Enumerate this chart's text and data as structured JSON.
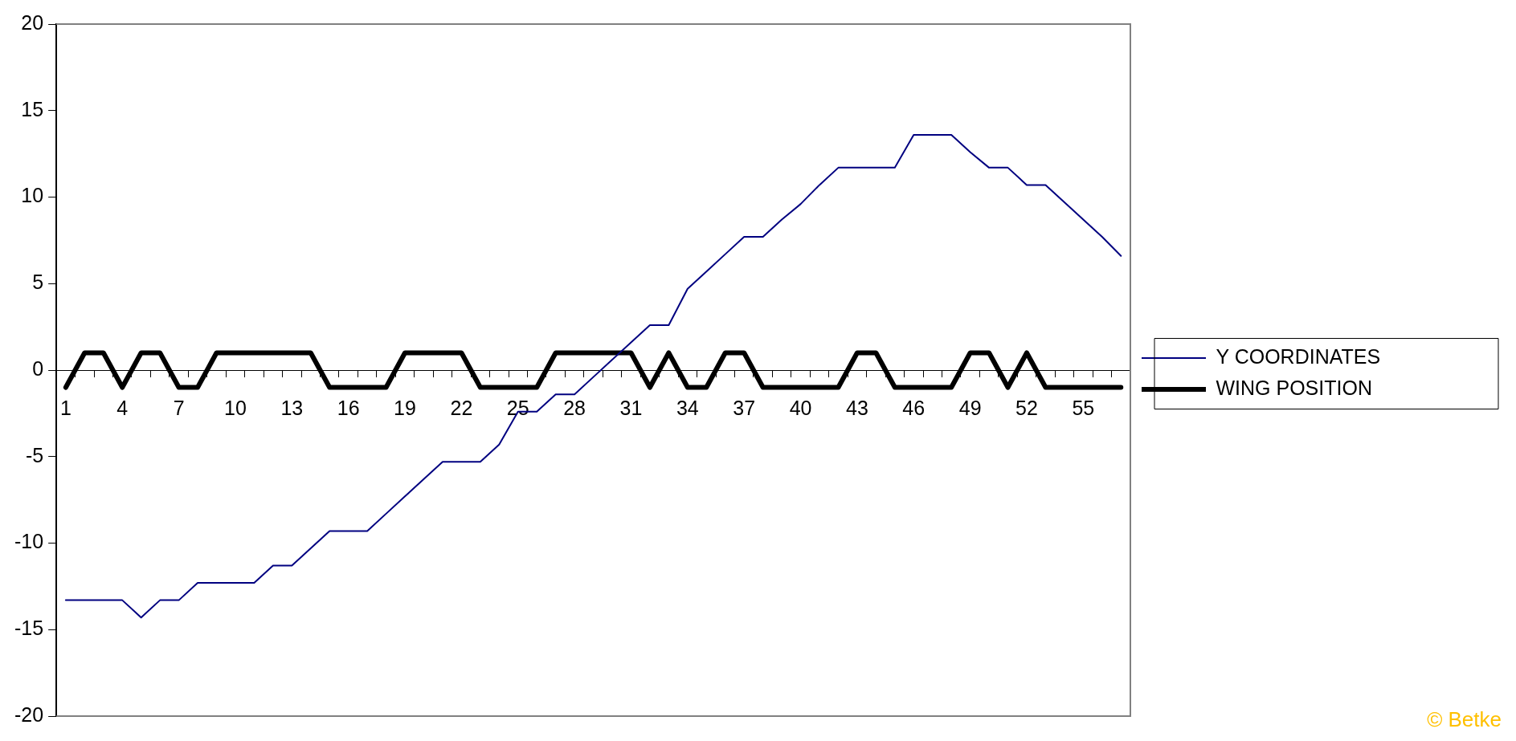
{
  "chart_data": {
    "type": "line",
    "categories": [
      "1",
      null,
      null,
      "4",
      null,
      null,
      "7",
      null,
      null,
      "10",
      null,
      null,
      "13",
      null,
      null,
      "16",
      null,
      null,
      "19",
      null,
      null,
      "22",
      null,
      null,
      "25",
      null,
      null,
      "28",
      null,
      null,
      "31",
      null,
      null,
      "34",
      null,
      null,
      "37",
      null,
      null,
      "40",
      null,
      null,
      "43",
      null,
      null,
      "46",
      null,
      null,
      "49",
      null,
      null,
      "52",
      null,
      null,
      "55",
      null,
      null
    ],
    "series": [
      {
        "name": "Y COORDINATES",
        "color": "#000080",
        "values": [
          -13.3,
          -13.3,
          -13.3,
          -13.3,
          -14.3,
          -13.3,
          -13.3,
          -12.3,
          -12.3,
          -12.3,
          -12.3,
          -11.3,
          -11.3,
          -10.3,
          -9.3,
          -9.3,
          -9.3,
          -8.3,
          -7.3,
          -6.3,
          -5.3,
          -5.3,
          -5.3,
          -4.3,
          -2.4,
          -2.4,
          -1.4,
          -1.4,
          -0.4,
          0.6,
          1.6,
          2.6,
          2.6,
          4.7,
          5.7,
          6.7,
          7.7,
          7.7,
          8.7,
          9.6,
          10.7,
          11.7,
          11.7,
          11.7,
          11.7,
          13.6,
          13.6,
          13.6,
          12.6,
          11.7,
          11.7,
          10.7,
          10.7,
          9.7,
          8.7,
          7.7,
          6.6
        ]
      },
      {
        "name": "WING POSITION",
        "color": "#000000",
        "values": [
          -1,
          1,
          1,
          -1,
          1,
          1,
          -1,
          -1,
          1,
          1,
          1,
          1,
          1,
          1,
          -1,
          -1,
          -1,
          -1,
          1,
          1,
          1,
          1,
          -1,
          -1,
          -1,
          -1,
          1,
          1,
          1,
          1,
          1,
          -1,
          1,
          -1,
          -1,
          1,
          1,
          -1,
          -1,
          -1,
          -1,
          -1,
          1,
          1,
          -1,
          -1,
          -1,
          -1,
          1,
          1,
          -1,
          1,
          -1,
          -1,
          -1,
          -1,
          -1
        ]
      }
    ],
    "ylim": [
      -20,
      20
    ],
    "yticks": [
      -20,
      -15,
      -10,
      -5,
      0,
      5,
      10,
      15,
      20
    ],
    "grid": false,
    "legend": "right",
    "marker": "none",
    "annotations": [
      "© Betke"
    ]
  }
}
